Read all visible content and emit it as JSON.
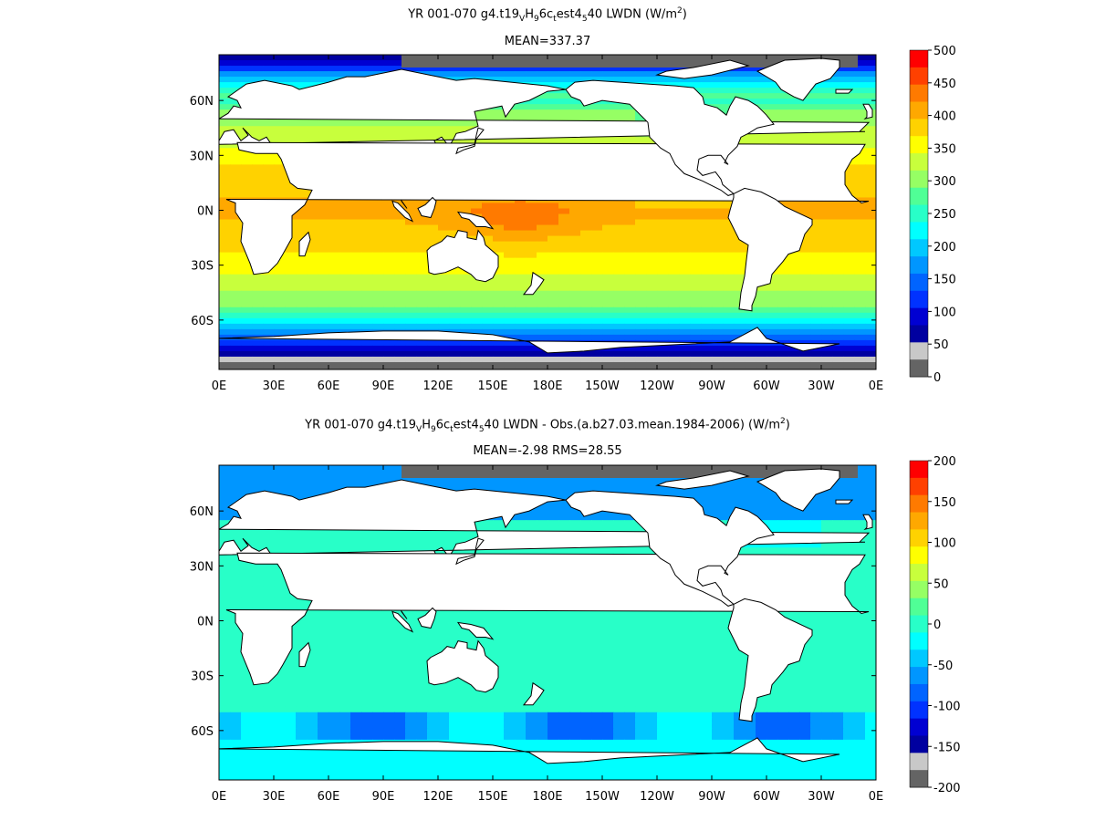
{
  "panels": [
    {
      "title_parts": [
        {
          "t": "YR 001-070 g4.t19"
        },
        {
          "t": "V",
          "s": "sub"
        },
        {
          "t": "H"
        },
        {
          "t": "9",
          "s": "sub"
        },
        {
          "t": "6c"
        },
        {
          "t": "t",
          "s": "sub"
        },
        {
          "t": "est4"
        },
        {
          "t": "5",
          "s": "sub"
        },
        {
          "t": "40 LWDN (W/m"
        },
        {
          "t": "2",
          "s": "sup"
        },
        {
          "t": ")"
        }
      ],
      "subtitle": "MEAN=337.37",
      "colorbar": {
        "labels": [
          "500",
          "450",
          "400",
          "350",
          "300",
          "250",
          "200",
          "150",
          "100",
          "50",
          "0"
        ],
        "colors": [
          "#ff0000",
          "#ff4000",
          "#ff7a00",
          "#ffa800",
          "#ffd200",
          "#ffff00",
          "#c8ff3c",
          "#96ff64",
          "#50ff96",
          "#28ffc8",
          "#00ffff",
          "#00c8ff",
          "#0096ff",
          "#0064ff",
          "#0032ff",
          "#0000d2",
          "#0000a0",
          "#c8c8c8",
          "#646464"
        ]
      },
      "field": "lwdn",
      "mean": 337.37
    },
    {
      "title_parts": [
        {
          "t": "YR 001-070 g4.t19"
        },
        {
          "t": "V",
          "s": "sub"
        },
        {
          "t": "H"
        },
        {
          "t": "9",
          "s": "sub"
        },
        {
          "t": "6c"
        },
        {
          "t": "t",
          "s": "sub"
        },
        {
          "t": "est4"
        },
        {
          "t": "5",
          "s": "sub"
        },
        {
          "t": "40 LWDN - Obs.(a.b27.03.mean.1984-2006) (W/m"
        },
        {
          "t": "2",
          "s": "sup"
        },
        {
          "t": ")"
        }
      ],
      "subtitle": "MEAN=-2.98 RMS=28.55",
      "colorbar": {
        "labels": [
          "200",
          "150",
          "100",
          "50",
          "0",
          "-50",
          "-100",
          "-150",
          "-200"
        ],
        "colors": [
          "#ff0000",
          "#ff4000",
          "#ff7a00",
          "#ffa800",
          "#ffd200",
          "#ffff00",
          "#c8ff3c",
          "#96ff64",
          "#50ff96",
          "#28ffc8",
          "#00ffff",
          "#00c8ff",
          "#0096ff",
          "#0064ff",
          "#0032ff",
          "#0000d2",
          "#0000a0",
          "#c8c8c8",
          "#646464"
        ]
      },
      "field": "diff",
      "mean": -2.98,
      "rms": 28.55
    }
  ],
  "map": {
    "lat_labels": [
      "60N",
      "30N",
      "0N",
      "30S",
      "60S"
    ],
    "lon_labels": [
      "0E",
      "30E",
      "60E",
      "90E",
      "120E",
      "150E",
      "180E",
      "150W",
      "120W",
      "90W",
      "60W",
      "30W",
      "0E"
    ],
    "colors": {
      "land": "#ffffff",
      "coast": "#000000",
      "sea_ice": "#646464",
      "light_ice": "#c8c8c8"
    }
  }
}
